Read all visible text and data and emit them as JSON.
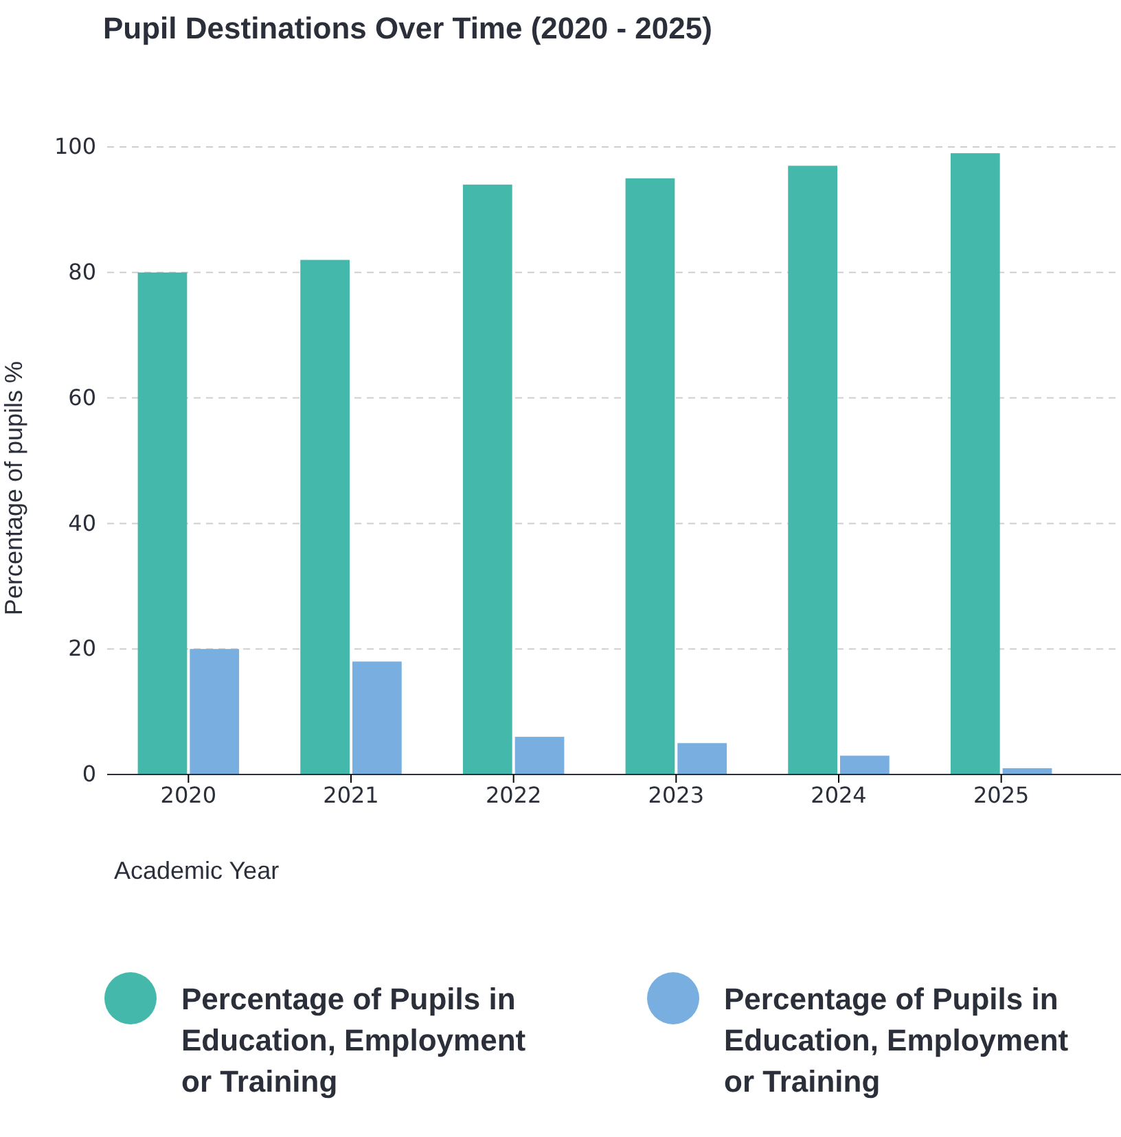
{
  "chart_data": {
    "type": "bar",
    "title": "Pupil Destinations Over Time (2020 - 2025)",
    "xlabel": "Academic Year",
    "ylabel": "Percentage of pupils %",
    "categories": [
      "2020",
      "2021",
      "2022",
      "2023",
      "2024",
      "2025"
    ],
    "series": [
      {
        "name": "Percentage of Pupils in Education, Employment or Training",
        "color": "#45b8ac",
        "values": [
          80,
          82,
          94,
          95,
          97,
          99
        ]
      },
      {
        "name": "Percentage of Pupils in Education, Employment or Training",
        "color": "#78aee0",
        "values": [
          20,
          18,
          6,
          5,
          3,
          1
        ]
      }
    ],
    "ylim": [
      0,
      100
    ],
    "yticks": [
      0,
      20,
      40,
      60,
      80,
      100
    ],
    "grid": "y",
    "legend": "bottom"
  }
}
